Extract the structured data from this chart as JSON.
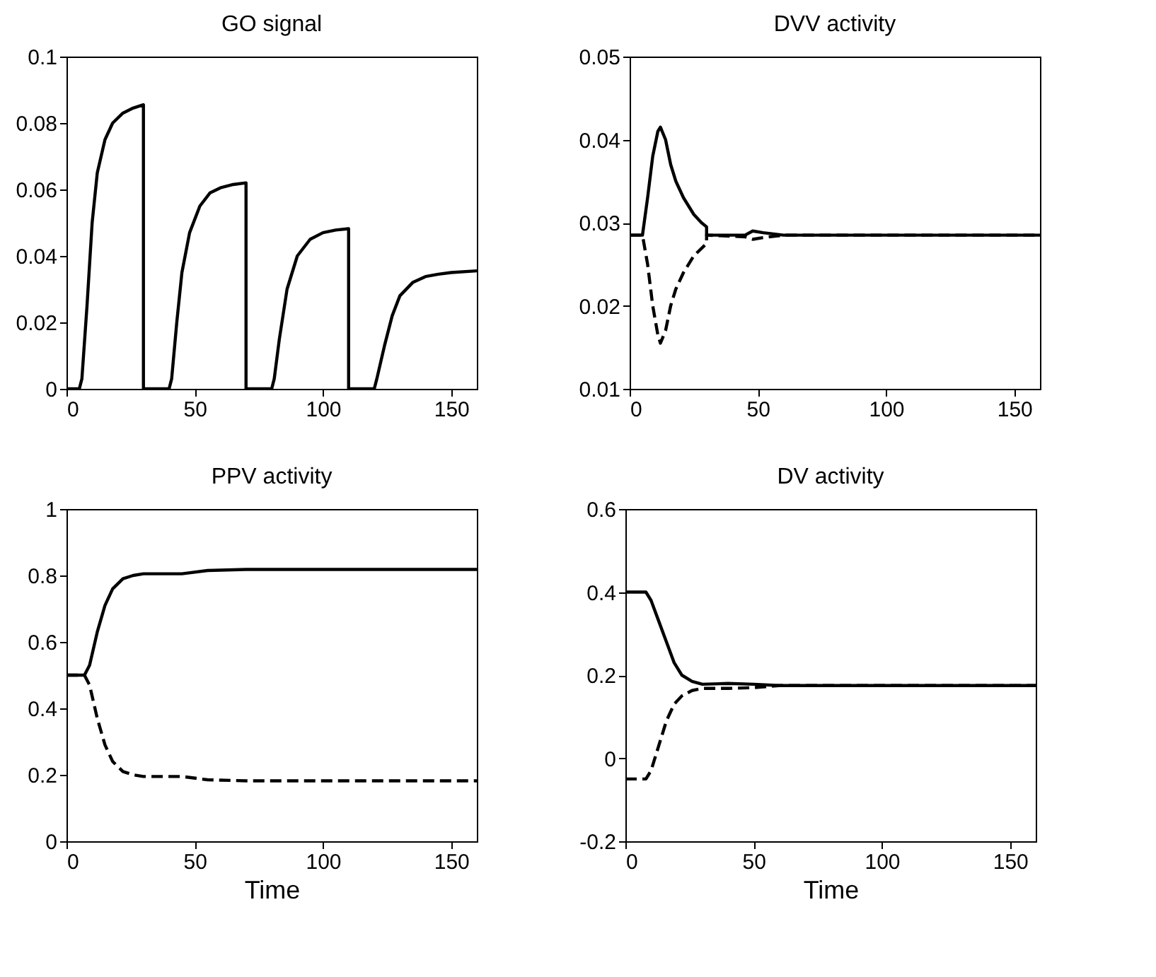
{
  "chart_data": [
    {
      "type": "line",
      "title": "GO signal",
      "xlim": [
        0,
        160
      ],
      "xticks": [
        0,
        50,
        100,
        150
      ],
      "ylim": [
        0,
        0.1
      ],
      "yticks": [
        0,
        0.02,
        0.04,
        0.06,
        0.08,
        0.1
      ],
      "series": [
        {
          "color": "#000000",
          "line_style": "solid",
          "x": [
            0,
            5,
            6,
            8,
            10,
            12,
            15,
            18,
            22,
            26,
            30,
            30,
            40,
            41,
            43,
            45,
            48,
            52,
            56,
            60,
            65,
            70,
            70,
            80,
            81,
            83,
            86,
            90,
            95,
            100,
            105,
            110,
            110,
            120,
            121,
            124,
            127,
            130,
            135,
            140,
            145,
            150,
            160
          ],
          "values": [
            0,
            0,
            0.003,
            0.025,
            0.05,
            0.065,
            0.075,
            0.08,
            0.083,
            0.0845,
            0.0855,
            0,
            0,
            0.003,
            0.02,
            0.035,
            0.047,
            0.055,
            0.059,
            0.0605,
            0.0615,
            0.062,
            0,
            0,
            0.003,
            0.015,
            0.03,
            0.04,
            0.045,
            0.047,
            0.0478,
            0.0482,
            0,
            0,
            0.003,
            0.013,
            0.022,
            0.028,
            0.032,
            0.0338,
            0.0345,
            0.035,
            0.0355
          ]
        }
      ]
    },
    {
      "type": "line",
      "title": "DVV activity",
      "xlim": [
        0,
        160
      ],
      "xticks": [
        0,
        50,
        100,
        150
      ],
      "ylim": [
        0.01,
        0.05
      ],
      "yticks": [
        0.01,
        0.02,
        0.03,
        0.04,
        0.05
      ],
      "series": [
        {
          "color": "#000000",
          "line_style": "solid",
          "x": [
            0,
            5,
            7,
            9,
            11,
            12,
            14,
            16,
            18,
            21,
            25,
            28,
            30,
            30,
            45,
            48,
            52,
            60,
            160
          ],
          "values": [
            0.0285,
            0.0285,
            0.033,
            0.038,
            0.041,
            0.0415,
            0.04,
            0.037,
            0.035,
            0.033,
            0.031,
            0.03,
            0.0295,
            0.0285,
            0.0285,
            0.029,
            0.0288,
            0.0285,
            0.0285
          ]
        },
        {
          "color": "#000000",
          "line_style": "dashed",
          "x": [
            0,
            5,
            7,
            9,
            11,
            12,
            14,
            16,
            18,
            21,
            25,
            30,
            30,
            45,
            48,
            52,
            60,
            160
          ],
          "values": [
            0.0285,
            0.0285,
            0.025,
            0.02,
            0.0165,
            0.0155,
            0.017,
            0.02,
            0.022,
            0.024,
            0.026,
            0.0275,
            0.0285,
            0.0283,
            0.028,
            0.0282,
            0.0285,
            0.0285
          ]
        }
      ]
    },
    {
      "type": "line",
      "title": "PPV activity",
      "xlabel": "Time",
      "xlim": [
        0,
        160
      ],
      "xticks": [
        0,
        50,
        100,
        150
      ],
      "ylim": [
        0,
        1
      ],
      "yticks": [
        0,
        0.2,
        0.4,
        0.6,
        0.8,
        1
      ],
      "series": [
        {
          "color": "#000000",
          "line_style": "solid",
          "x": [
            0,
            7,
            9,
            12,
            15,
            18,
            22,
            26,
            30,
            45,
            55,
            70,
            160
          ],
          "values": [
            0.5,
            0.5,
            0.53,
            0.63,
            0.71,
            0.76,
            0.79,
            0.8,
            0.805,
            0.805,
            0.815,
            0.818,
            0.818
          ]
        },
        {
          "color": "#000000",
          "line_style": "dashed",
          "x": [
            0,
            7,
            9,
            12,
            15,
            18,
            22,
            26,
            30,
            45,
            55,
            70,
            160
          ],
          "values": [
            0.5,
            0.5,
            0.47,
            0.37,
            0.29,
            0.24,
            0.21,
            0.2,
            0.195,
            0.195,
            0.185,
            0.182,
            0.182
          ]
        }
      ]
    },
    {
      "type": "line",
      "title": "DV activity",
      "xlabel": "Time",
      "xlim": [
        0,
        160
      ],
      "xticks": [
        0,
        50,
        100,
        150
      ],
      "ylim": [
        -0.2,
        0.6
      ],
      "yticks": [
        -0.2,
        0,
        0.2,
        0.4,
        0.6
      ],
      "series": [
        {
          "color": "#000000",
          "line_style": "solid",
          "x": [
            0,
            8,
            10,
            13,
            16,
            19,
            22,
            26,
            30,
            40,
            50,
            60,
            160
          ],
          "values": [
            0.4,
            0.4,
            0.38,
            0.33,
            0.28,
            0.23,
            0.2,
            0.185,
            0.178,
            0.18,
            0.178,
            0.175,
            0.175
          ]
        },
        {
          "color": "#000000",
          "line_style": "dashed",
          "x": [
            0,
            8,
            10,
            13,
            16,
            19,
            22,
            26,
            30,
            40,
            50,
            60,
            160
          ],
          "values": [
            -0.05,
            -0.05,
            -0.03,
            0.03,
            0.09,
            0.13,
            0.15,
            0.163,
            0.168,
            0.168,
            0.17,
            0.175,
            0.175
          ]
        }
      ]
    }
  ]
}
